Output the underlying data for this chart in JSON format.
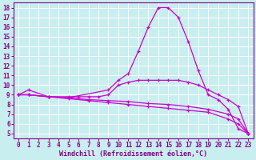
{
  "xlabel": "Windchill (Refroidissement éolien,°C)",
  "background_color": "#c8eef0",
  "grid_color": "#ffffff",
  "line_color": "#cc00cc",
  "xlim": [
    -0.5,
    23.5
  ],
  "ylim": [
    4.5,
    18.5
  ],
  "yticks": [
    5,
    6,
    7,
    8,
    9,
    10,
    11,
    12,
    13,
    14,
    15,
    16,
    17,
    18
  ],
  "xticks": [
    0,
    1,
    2,
    3,
    4,
    5,
    6,
    7,
    8,
    9,
    10,
    11,
    12,
    13,
    14,
    15,
    16,
    17,
    18,
    19,
    20,
    21,
    22,
    23
  ],
  "series": [
    {
      "x": [
        0,
        1,
        3,
        5,
        9,
        10,
        11,
        12,
        13,
        14,
        15,
        16,
        17,
        18,
        19,
        20,
        21,
        22,
        23
      ],
      "y": [
        9.0,
        9.5,
        8.8,
        8.7,
        9.5,
        10.5,
        11.2,
        13.5,
        16.0,
        18.0,
        18.0,
        17.0,
        14.5,
        11.5,
        9.0,
        8.5,
        7.5,
        5.5,
        5.0
      ]
    },
    {
      "x": [
        0,
        1,
        3,
        5,
        6,
        7,
        8,
        9,
        10,
        11,
        12,
        13,
        14,
        15,
        16,
        17,
        18,
        19,
        20,
        21,
        22,
        23
      ],
      "y": [
        9.0,
        9.0,
        8.8,
        8.8,
        8.8,
        8.8,
        8.8,
        9.0,
        10.0,
        10.3,
        10.5,
        10.5,
        10.5,
        10.5,
        10.5,
        10.3,
        10.0,
        9.5,
        9.0,
        8.5,
        7.8,
        5.0
      ]
    },
    {
      "x": [
        0,
        1,
        3,
        5,
        7,
        9,
        11,
        13,
        15,
        17,
        19,
        21,
        22,
        23
      ],
      "y": [
        9.0,
        9.0,
        8.8,
        8.7,
        8.5,
        8.4,
        8.3,
        8.1,
        8.0,
        7.8,
        7.5,
        7.0,
        6.5,
        5.0
      ]
    },
    {
      "x": [
        0,
        1,
        3,
        5,
        7,
        9,
        11,
        13,
        15,
        17,
        19,
        21,
        22,
        23
      ],
      "y": [
        9.0,
        9.0,
        8.8,
        8.6,
        8.4,
        8.2,
        8.0,
        7.8,
        7.6,
        7.4,
        7.2,
        6.5,
        6.0,
        5.0
      ]
    }
  ],
  "tick_fontsize": 5.5,
  "xlabel_fontsize": 6,
  "figsize": [
    3.2,
    2.0
  ],
  "dpi": 100
}
